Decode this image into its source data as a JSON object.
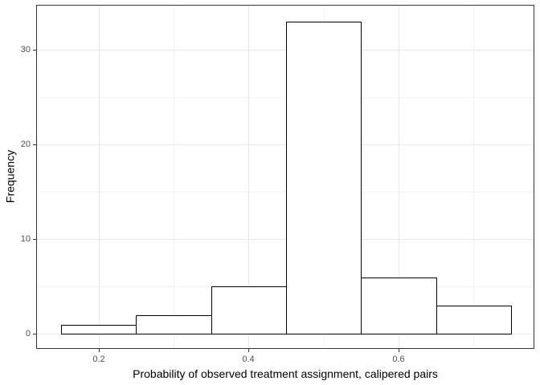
{
  "chart_data": {
    "type": "histogram",
    "title": "",
    "xlabel": "Probability of observed treatment assignment, calipered pairs",
    "ylabel": "Frequency",
    "bin_edges": [
      0.15,
      0.25,
      0.35,
      0.45,
      0.55,
      0.65,
      0.75
    ],
    "counts": [
      1,
      2,
      5,
      33,
      6,
      3
    ],
    "x_axis": {
      "domain": [
        0.118,
        0.78
      ],
      "major_ticks": [
        0.2,
        0.4,
        0.6
      ],
      "tick_labels": [
        "0.2",
        "0.4",
        "0.6"
      ],
      "minor_ticks": [
        0.3,
        0.5,
        0.7
      ]
    },
    "y_axis": {
      "domain": [
        -1.5,
        34.7
      ],
      "major_ticks": [
        0,
        10,
        20,
        30
      ],
      "tick_labels": [
        "0",
        "10",
        "20",
        "30"
      ],
      "minor_ticks": [
        5,
        15,
        25
      ]
    },
    "grid": true,
    "legend_position": "none",
    "style": {
      "background": "#ffffff",
      "panel_border": "#333333",
      "grid_major": "#e8e8e8",
      "grid_minor": "#f2f2f2",
      "bar_fill": "#ffffff",
      "bar_border": "#000000",
      "tick_mark": "#333333",
      "tick_label_color": "#4d4d4d",
      "axis_title_color": "#000000"
    }
  }
}
